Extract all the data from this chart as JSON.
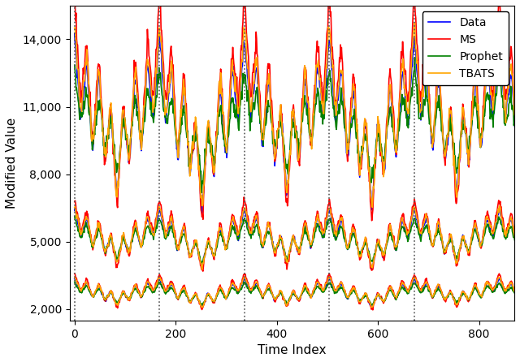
{
  "title": "",
  "xlabel": "Time Index",
  "ylabel": "Modified Value",
  "xlim": [
    -10,
    870
  ],
  "ylim": [
    1500,
    15500
  ],
  "yticks": [
    2000,
    5000,
    8000,
    11000,
    14000
  ],
  "dashed_vlines": [
    0,
    168,
    336,
    504,
    672
  ],
  "colors": {
    "Data": "#0000FF",
    "MS": "#FF0000",
    "Prophet": "#008000",
    "TBATS": "#FFA500"
  },
  "legend_labels": [
    "Data",
    "MS",
    "Prophet",
    "TBATS"
  ],
  "n_points": 875,
  "lw": 1.2,
  "vline_color": "#555555",
  "background": "#FFFFFF"
}
